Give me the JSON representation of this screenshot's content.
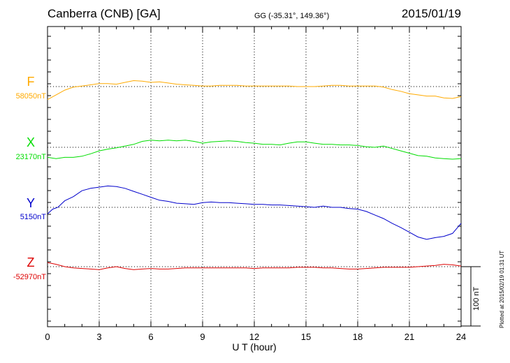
{
  "header": {
    "station": "Canberra (CNB)  [GA]",
    "coords": "GG (-35.31°, 149.36°)",
    "date": "2015/01/19"
  },
  "plotted_note": "Plotted at 2015/02/19 01:31  UT",
  "scale_label": "100 nT",
  "colors": {
    "F": "#ffaa00",
    "X": "#00dd00",
    "Y": "#0000cc",
    "Z": "#dd0000"
  },
  "chart_data": {
    "type": "line",
    "xlabel": "U T (hour)",
    "xlim": [
      0,
      24
    ],
    "xticks": [
      "0",
      "3",
      "6",
      "9",
      "12",
      "15",
      "18",
      "21",
      "24"
    ],
    "grid": true,
    "scale_nT": 100,
    "series": [
      {
        "name": "F",
        "baseline_label": "58050nT",
        "baseline_nT": 58050,
        "x": [
          0,
          0.5,
          1,
          1.5,
          2,
          2.5,
          3,
          3.5,
          4,
          4.5,
          5,
          5.5,
          6,
          6.5,
          7,
          7.5,
          8,
          8.5,
          9,
          9.5,
          10,
          10.5,
          11,
          11.5,
          12,
          12.5,
          13,
          13.5,
          14,
          14.5,
          15,
          15.5,
          16,
          16.5,
          17,
          17.5,
          18,
          18.5,
          19,
          19.5,
          20,
          20.5,
          21,
          21.5,
          22,
          22.5,
          23,
          23.5,
          24
        ],
        "values": [
          58028,
          58036,
          58044,
          58049,
          58051,
          58053,
          58055,
          58055,
          58054,
          58057,
          58060,
          58059,
          58057,
          58058,
          58056,
          58054,
          58053,
          58052,
          58051,
          58051,
          58052,
          58052,
          58052,
          58051,
          58051,
          58051,
          58051,
          58051,
          58051,
          58050,
          58050,
          58050,
          58051,
          58052,
          58052,
          58051,
          58051,
          58051,
          58051,
          58049,
          58045,
          58042,
          58038,
          58036,
          58034,
          58034,
          58031,
          58030,
          58033
        ]
      },
      {
        "name": "X",
        "baseline_label": "23170nT",
        "baseline_nT": 23170,
        "x": [
          0,
          0.5,
          1,
          1.5,
          2,
          2.5,
          3,
          3.5,
          4,
          4.5,
          5,
          5.5,
          6,
          6.5,
          7,
          7.5,
          8,
          8.5,
          9,
          9.5,
          10,
          10.5,
          11,
          11.5,
          12,
          12.5,
          13,
          13.5,
          14,
          14.5,
          15,
          15.5,
          16,
          16.5,
          17,
          17.5,
          18,
          18.5,
          19,
          19.5,
          20,
          20.5,
          21,
          21.5,
          22,
          22.5,
          23,
          23.5,
          24
        ],
        "values": [
          23153,
          23151,
          23153,
          23153,
          23155,
          23159,
          23164,
          23167,
          23169,
          23172,
          23175,
          23180,
          23182,
          23181,
          23182,
          23181,
          23182,
          23180,
          23177,
          23179,
          23180,
          23181,
          23180,
          23178,
          23177,
          23175,
          23175,
          23174,
          23177,
          23179,
          23179,
          23177,
          23175,
          23175,
          23174,
          23174,
          23173,
          23171,
          23170,
          23172,
          23168,
          23164,
          23160,
          23156,
          23155,
          23152,
          23151,
          23150,
          23151
        ]
      },
      {
        "name": "Y",
        "baseline_label": "5150nT",
        "baseline_nT": 5150,
        "x": [
          0,
          0.3,
          0.6,
          1,
          1.5,
          2,
          2.5,
          3,
          3.5,
          4,
          4.5,
          5,
          5.5,
          6,
          6.5,
          7,
          7.5,
          8,
          8.5,
          9,
          9.5,
          10,
          10.5,
          11,
          11.5,
          12,
          12.5,
          13,
          13.5,
          14,
          14.5,
          15,
          15.5,
          16,
          16.5,
          17,
          17.5,
          18,
          18.5,
          19,
          19.5,
          20,
          20.5,
          21,
          21.5,
          22,
          22.5,
          23,
          23.5,
          24
        ],
        "values": [
          5139,
          5147,
          5150,
          5161,
          5168,
          5178,
          5182,
          5184,
          5186,
          5185,
          5182,
          5177,
          5172,
          5167,
          5162,
          5160,
          5157,
          5156,
          5155,
          5158,
          5159,
          5158,
          5158,
          5157,
          5156,
          5155,
          5155,
          5154,
          5154,
          5153,
          5152,
          5151,
          5150,
          5152,
          5150,
          5150,
          5148,
          5147,
          5143,
          5137,
          5131,
          5123,
          5116,
          5108,
          5100,
          5096,
          5099,
          5101,
          5106,
          5123
        ]
      },
      {
        "name": "Z",
        "baseline_label": "-52970nT",
        "baseline_nT": -52970,
        "x": [
          0,
          0.5,
          1,
          1.5,
          2,
          2.5,
          3,
          3.5,
          4,
          4.5,
          5,
          5.5,
          6,
          6.5,
          7,
          7.5,
          8,
          8.5,
          9,
          9.5,
          10,
          10.5,
          11,
          11.5,
          12,
          12.5,
          13,
          13.5,
          14,
          14.5,
          15,
          15.5,
          16,
          16.5,
          17,
          17.5,
          18,
          18.5,
          19,
          19.5,
          20,
          20.5,
          21,
          21.5,
          22,
          22.5,
          23,
          23.5,
          24
        ],
        "values": [
          -52963,
          -52966,
          -52970,
          -52972,
          -52973,
          -52974,
          -52975,
          -52972,
          -52970,
          -52973,
          -52975,
          -52974,
          -52973,
          -52974,
          -52974,
          -52973,
          -52972,
          -52972,
          -52972,
          -52972,
          -52972,
          -52972,
          -52972,
          -52972,
          -52973,
          -52972,
          -52972,
          -52972,
          -52972,
          -52971,
          -52971,
          -52971,
          -52972,
          -52972,
          -52973,
          -52974,
          -52974,
          -52973,
          -52972,
          -52971,
          -52971,
          -52971,
          -52971,
          -52970,
          -52969,
          -52968,
          -52966,
          -52967,
          -52969
        ]
      }
    ]
  }
}
